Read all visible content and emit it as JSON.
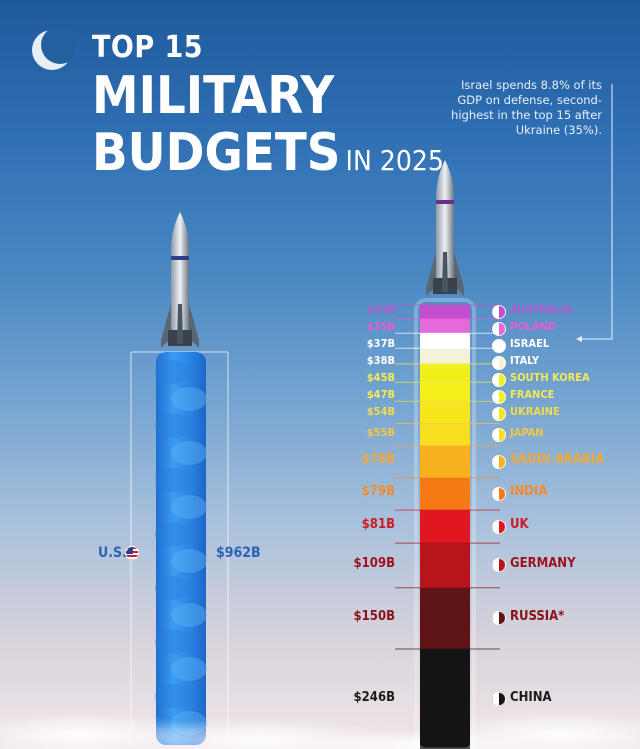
{
  "title": {
    "line1": "TOP 15",
    "line2": "MILITARY",
    "line3": "BUDGETS",
    "suffix": "IN 2025"
  },
  "annotation": "Israel spends 8.8% of its GDP on defense, second-highest in the top 15 after Ukraine (35%).",
  "colors": {
    "us_plume": "#2f8fe8",
    "australia": "#c34fd0",
    "poland": "#e36ad8",
    "israel": "#ffffff",
    "italy": "#f4f3d8",
    "south_korea": "#f2f01a",
    "france": "#f5ef1c",
    "ukraine": "#f6e51a",
    "japan": "#f7de1e",
    "saudi_arabia": "#f6b11c",
    "india": "#f57a16",
    "uk": "#e0171f",
    "germany": "#b8141b",
    "russia": "#5e1316",
    "china": "#141414"
  },
  "chart_data": {
    "type": "bar",
    "title": "TOP 15 MILITARY BUDGETS IN 2025",
    "unit": "USD billions",
    "us": {
      "label": "U.S.",
      "value": 962,
      "value_label": "$962B"
    },
    "categories": [
      "AUSTRALIA",
      "POLAND",
      "ISRAEL",
      "ITALY",
      "SOUTH KOREA",
      "FRANCE",
      "UKRAINE",
      "JAPAN",
      "SAUDI ARABIA",
      "INDIA",
      "UK",
      "GERMANY",
      "RUSSIA",
      "CHINA"
    ],
    "values": [
      34,
      35,
      37,
      38,
      45,
      47,
      54,
      55,
      78,
      79,
      81,
      109,
      150,
      246
    ],
    "value_labels": [
      "$34B",
      "$35B",
      "$37B",
      "$38B",
      "$45B",
      "$47B",
      "$54B",
      "$55B",
      "$78B",
      "$79B",
      "$81B",
      "$109B",
      "$150B",
      "$246B"
    ],
    "name_suffixes": [
      "",
      "",
      "",
      "",
      "",
      "",
      "",
      "",
      "",
      "",
      "",
      "",
      "*",
      ""
    ],
    "label_colors": [
      "#b65ad0",
      "#e35fcf",
      "#ffffff",
      "#ffffff",
      "#f3e95b",
      "#f3e95b",
      "#f0dd4e",
      "#f2c548",
      "#f2a93b",
      "#f58a2b",
      "#cc1a26",
      "#a0121b",
      "#8a1218",
      "#1c1c1c"
    ]
  }
}
